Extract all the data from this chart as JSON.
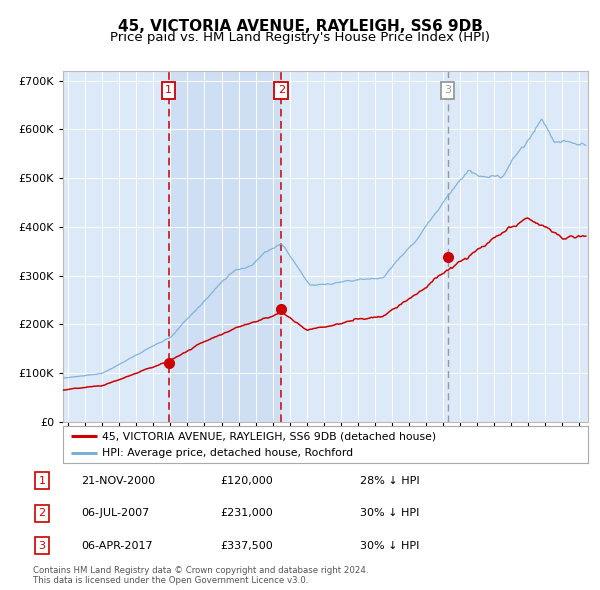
{
  "title": "45, VICTORIA AVENUE, RAYLEIGH, SS6 9DB",
  "subtitle": "Price paid vs. HM Land Registry's House Price Index (HPI)",
  "footer": "Contains HM Land Registry data © Crown copyright and database right 2024.\nThis data is licensed under the Open Government Licence v3.0.",
  "legend_line1": "45, VICTORIA AVENUE, RAYLEIGH, SS6 9DB (detached house)",
  "legend_line2": "HPI: Average price, detached house, Rochford",
  "transactions": [
    {
      "label": "1",
      "date": "21-NOV-2000",
      "price": "£120,000",
      "pct": "28% ↓ HPI"
    },
    {
      "label": "2",
      "date": "06-JUL-2007",
      "price": "£231,000",
      "pct": "30% ↓ HPI"
    },
    {
      "label": "3",
      "date": "06-APR-2017",
      "price": "£337,500",
      "pct": "30% ↓ HPI"
    }
  ],
  "transaction_dates_num": [
    2000.89,
    2007.51,
    2017.26
  ],
  "transaction_prices": [
    120000,
    231000,
    337500
  ],
  "vline1_date": 2000.89,
  "vline2_date": 2007.51,
  "vline3_date": 2017.26,
  "ylim": [
    0,
    720000
  ],
  "xlim_start": 1994.7,
  "xlim_end": 2025.5,
  "plot_bg_color": "#dce9f8",
  "shade_bg_color": "#ccdff5",
  "grid_color": "#ffffff",
  "red_line_color": "#cc0000",
  "blue_line_color": "#7aaed6",
  "vline_color_red": "#cc0000",
  "vline_color_grey": "#999999",
  "title_fontsize": 11,
  "subtitle_fontsize": 9.5
}
